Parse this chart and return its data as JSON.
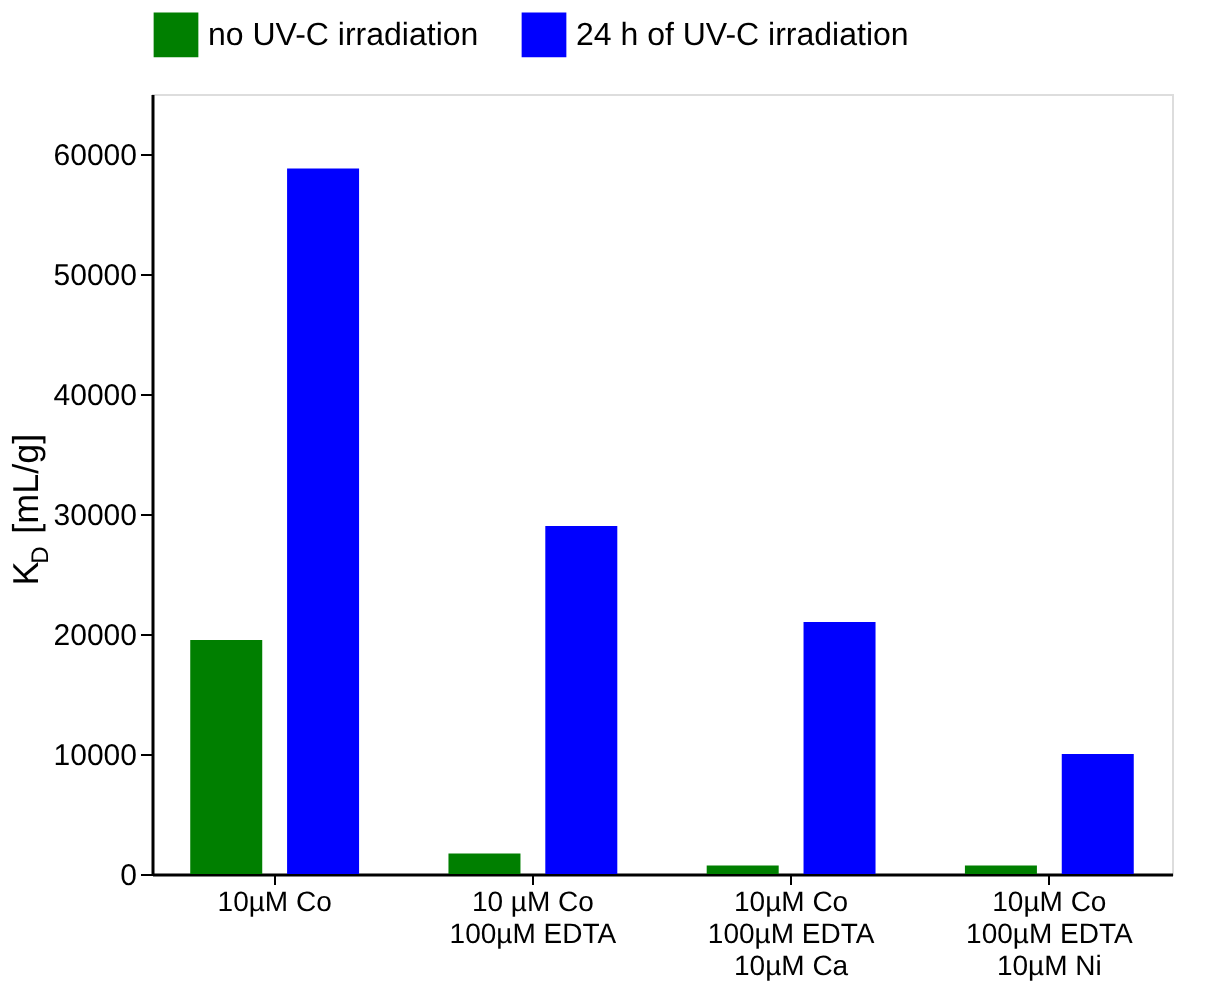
{
  "chart_data": {
    "type": "bar",
    "ylabel": "K$_{D}$ [mL/g]",
    "categories": [
      "10µM Co",
      "10 µM Co\n100µM EDTA",
      "10µM Co\n100µM EDTA\n10µM Ca",
      "10µM Co\n100µM EDTA\n10µM Ni"
    ],
    "series": [
      {
        "name": "no UV-C irradiation",
        "color": "#007f00",
        "values": [
          19500,
          1700,
          700,
          700
        ]
      },
      {
        "name": "24 h of UV-C irradiation",
        "color": "#0000ff",
        "values": [
          58800,
          29000,
          21000,
          10000
        ]
      }
    ],
    "ylim": [
      0,
      65000
    ],
    "yticks": [
      0,
      10000,
      20000,
      30000,
      40000,
      50000,
      60000
    ],
    "grid": false,
    "legend": "top"
  }
}
